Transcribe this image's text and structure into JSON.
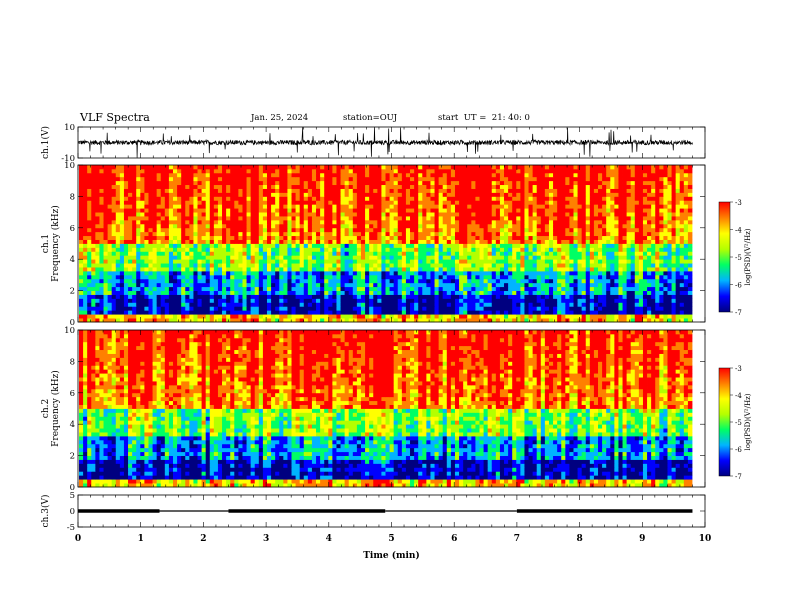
{
  "header": {
    "title": "VLF Spectra",
    "date": "Jan. 25, 2024",
    "station": "station=OUJ",
    "start": "start  UT =  21: 40: 0"
  },
  "chart_data": [
    {
      "type": "line",
      "title": "",
      "ylabel": "ch.1(V)",
      "xlim": [
        0,
        10
      ],
      "ylim": [
        -10,
        10
      ],
      "yticks": [
        "10",
        "-10"
      ],
      "description_values": {
        "baseline": 0,
        "noise_amplitude": 1.5,
        "data_end_min": 9.8
      }
    },
    {
      "type": "heatmap",
      "ylabel": "ch.1\nFrequency (kHz)",
      "xlim": [
        0,
        9.8
      ],
      "ylim": [
        0,
        10
      ],
      "yticks": [
        "0",
        "2",
        "4",
        "6",
        "8",
        "10"
      ],
      "colorbar": {
        "label": "log(PSD)(V²/Hz)",
        "range": [
          -7,
          -3
        ],
        "ticks": [
          "-3",
          "-4",
          "-5",
          "-6",
          "-7"
        ],
        "colors": [
          "#000080",
          "#0000ff",
          "#00b4ff",
          "#00ff64",
          "#b4ff00",
          "#ffff00",
          "#ff8000",
          "#ff0000"
        ]
      }
    },
    {
      "type": "heatmap",
      "ylabel": "ch.2\nFrequency (kHz)",
      "xlim": [
        0,
        9.8
      ],
      "ylim": [
        0,
        10
      ],
      "yticks": [
        "0",
        "2",
        "4",
        "6",
        "8",
        "10"
      ],
      "colorbar": {
        "label": "log(PSD)(V²/Hz)",
        "range": [
          -7,
          -3
        ],
        "ticks": [
          "-3",
          "-4",
          "-5",
          "-6",
          "-7"
        ],
        "colors": [
          "#000080",
          "#0000ff",
          "#00b4ff",
          "#00ff64",
          "#b4ff00",
          "#ffff00",
          "#ff8000",
          "#ff0000"
        ]
      }
    },
    {
      "type": "line",
      "ylabel": "ch.3(V)",
      "xlabel": "Time  (min)",
      "xlim": [
        0,
        10
      ],
      "ylim": [
        -5,
        5
      ],
      "yticks": [
        "5",
        "0",
        "-5"
      ],
      "xticks": [
        "0",
        "1",
        "2",
        "3",
        "4",
        "5",
        "6",
        "7",
        "8",
        "9",
        "10"
      ],
      "segments": [
        {
          "x_start": 0,
          "x_end": 1.3,
          "y": 0
        },
        {
          "x_start": 2.4,
          "x_end": 4.9,
          "y": 0
        },
        {
          "x_start": 7.0,
          "x_end": 9.8,
          "y": 0
        }
      ],
      "thin_segments": [
        {
          "x_start": 1.3,
          "x_end": 2.4,
          "y": 0
        },
        {
          "x_start": 4.9,
          "x_end": 7.0,
          "y": 0
        }
      ]
    }
  ]
}
